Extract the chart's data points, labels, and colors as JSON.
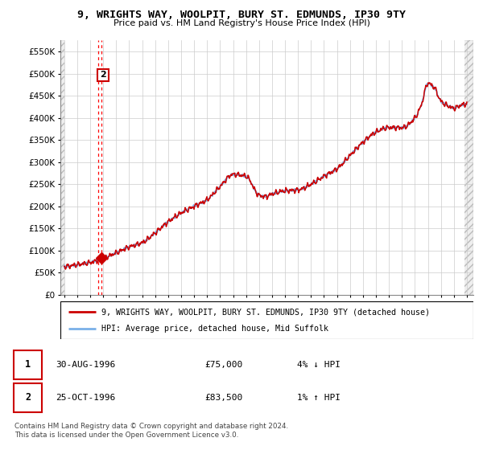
{
  "title": "9, WRIGHTS WAY, WOOLPIT, BURY ST. EDMUNDS, IP30 9TY",
  "subtitle": "Price paid vs. HM Land Registry's House Price Index (HPI)",
  "ylabel_ticks": [
    "£0",
    "£50K",
    "£100K",
    "£150K",
    "£200K",
    "£250K",
    "£300K",
    "£350K",
    "£400K",
    "£450K",
    "£500K",
    "£550K"
  ],
  "ytick_values": [
    0,
    50000,
    100000,
    150000,
    200000,
    250000,
    300000,
    350000,
    400000,
    450000,
    500000,
    550000
  ],
  "xlim_start": 1993.7,
  "xlim_end": 2025.5,
  "ylim_min": 0,
  "ylim_max": 575000,
  "sale_date1": 1996.583,
  "sale_date2": 1996.833,
  "sale_price1": 75000,
  "sale_price2": 83500,
  "hpi_color": "#7ab0e8",
  "price_color": "#cc0000",
  "legend_label_price": "9, WRIGHTS WAY, WOOLPIT, BURY ST. EDMUNDS, IP30 9TY (detached house)",
  "legend_label_hpi": "HPI: Average price, detached house, Mid Suffolk",
  "table_rows": [
    [
      "1",
      "30-AUG-1996",
      "£75,000",
      "4% ↓ HPI"
    ],
    [
      "2",
      "25-OCT-1996",
      "£83,500",
      "1% ↑ HPI"
    ]
  ],
  "footnote": "Contains HM Land Registry data © Crown copyright and database right 2024.\nThis data is licensed under the Open Government Licence v3.0.",
  "grid_color": "#cccccc"
}
